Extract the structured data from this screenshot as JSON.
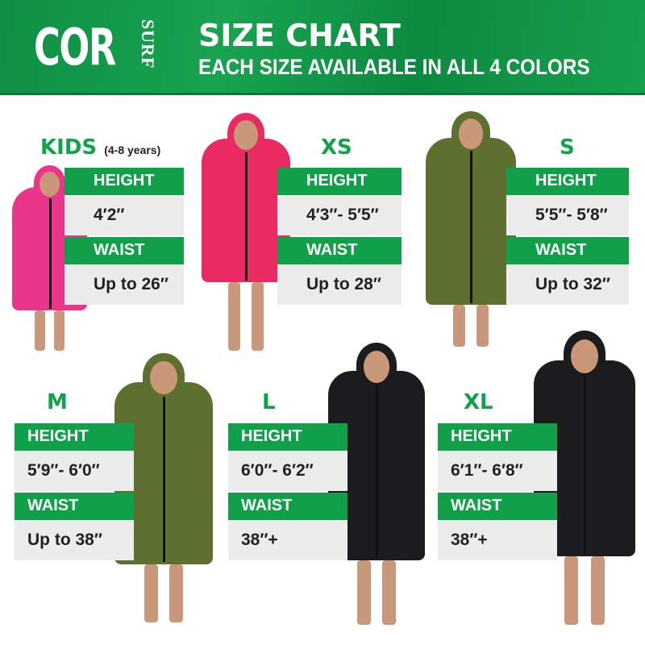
{
  "header": {
    "logo": "COR",
    "logo_sub": "SURF",
    "title": "SIZE CHART",
    "subtitle": "EACH SIZE AVAILABLE IN ALL 4 COLORS"
  },
  "colors": {
    "brand_green": "#10a04a",
    "panel_grey": "#ececec"
  },
  "labels": {
    "height": "HEIGHT",
    "waist": "WAIST"
  },
  "sizes": [
    {
      "name": "KIDS",
      "note": "(4-8 years)",
      "height": "4′2″",
      "waist": "Up to 26″",
      "coat_color": "#e8378a"
    },
    {
      "name": "XS",
      "height": "4′3″- 5′5″",
      "waist": "Up to 28″",
      "coat_color": "#ea2b63"
    },
    {
      "name": "S",
      "height": "5′5″- 5′8″",
      "waist": "Up to 32″",
      "coat_color": "#5e7030"
    },
    {
      "name": "M",
      "height": "5′9″- 6′0″",
      "waist": "Up to 38″",
      "coat_color": "#5e7030"
    },
    {
      "name": "L",
      "height": "6′0″- 6′2″",
      "waist": "38″+",
      "coat_color": "#1c1c1e"
    },
    {
      "name": "XL",
      "height": "6′1″- 6′8″",
      "waist": "38″+",
      "coat_color": "#1c1c1e"
    }
  ]
}
